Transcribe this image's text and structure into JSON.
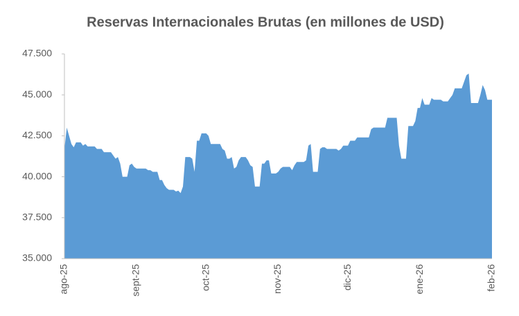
{
  "chart_data": {
    "type": "area",
    "title": "Reservas Internacionales Brutas (en millones de USD)",
    "categories": [
      "ago-25",
      null,
      null,
      null,
      null,
      null,
      null,
      null,
      null,
      null,
      null,
      null,
      null,
      null,
      null,
      null,
      null,
      null,
      null,
      null,
      null,
      null,
      null,
      null,
      null,
      null,
      null,
      null,
      null,
      null,
      null,
      "sept-25",
      null,
      null,
      null,
      null,
      null,
      null,
      null,
      null,
      null,
      null,
      null,
      null,
      null,
      null,
      null,
      null,
      null,
      null,
      null,
      null,
      null,
      null,
      null,
      null,
      null,
      null,
      null,
      null,
      null,
      "oct-25",
      null,
      null,
      null,
      null,
      null,
      null,
      null,
      null,
      null,
      null,
      null,
      null,
      null,
      null,
      null,
      null,
      null,
      null,
      null,
      null,
      null,
      null,
      null,
      null,
      null,
      null,
      null,
      null,
      null,
      null,
      "nov-25",
      null,
      null,
      null,
      null,
      null,
      null,
      null,
      null,
      null,
      null,
      null,
      null,
      null,
      null,
      null,
      null,
      null,
      null,
      null,
      null,
      null,
      null,
      null,
      null,
      null,
      null,
      null,
      null,
      null,
      "dic-25",
      null,
      null,
      null,
      null,
      null,
      null,
      null,
      null,
      null,
      null,
      null,
      null,
      null,
      null,
      null,
      null,
      null,
      null,
      null,
      null,
      null,
      null,
      null,
      null,
      null,
      null,
      null,
      null,
      null,
      null,
      "ene-26",
      null,
      null,
      null,
      null,
      null,
      null,
      null,
      null,
      null,
      null,
      null,
      null,
      null,
      null,
      null,
      null,
      null,
      null,
      null,
      null,
      null,
      null,
      null,
      null,
      null,
      null,
      null,
      null,
      null,
      null,
      "feb-26"
    ],
    "values": [
      41700,
      43000,
      42500,
      42000,
      41800,
      42100,
      42100,
      42100,
      41900,
      42000,
      41850,
      41850,
      41850,
      41850,
      41700,
      41700,
      41700,
      41500,
      41500,
      41500,
      41500,
      41300,
      41100,
      41200,
      40800,
      40000,
      40000,
      40000,
      40700,
      40800,
      40600,
      40500,
      40500,
      40500,
      40500,
      40500,
      40400,
      40400,
      40300,
      40300,
      40300,
      39800,
      39800,
      39500,
      39300,
      39200,
      39200,
      39200,
      39100,
      39150,
      39000,
      39400,
      41200,
      41200,
      41200,
      41100,
      40300,
      42200,
      42200,
      42650,
      42650,
      42650,
      42500,
      42000,
      42000,
      42000,
      42000,
      42000,
      41700,
      41600,
      41100,
      41100,
      41200,
      40500,
      40600,
      41000,
      41200,
      41200,
      41200,
      41000,
      40700,
      40600,
      39400,
      39400,
      39400,
      40800,
      40800,
      41000,
      41000,
      40200,
      40200,
      40200,
      40300,
      40500,
      40600,
      40600,
      40600,
      40600,
      40400,
      40700,
      40900,
      40900,
      40900,
      40900,
      41000,
      41900,
      42000,
      40300,
      40300,
      40300,
      41700,
      41800,
      41800,
      41700,
      41700,
      41700,
      41700,
      41700,
      41600,
      41700,
      41900,
      41900,
      41900,
      42200,
      42200,
      42200,
      42400,
      42400,
      42400,
      42400,
      42400,
      42400,
      42900,
      43000,
      43000,
      43000,
      43000,
      43000,
      43000,
      43600,
      43600,
      43600,
      43600,
      43600,
      41900,
      41100,
      41100,
      41100,
      43100,
      43100,
      43100,
      43400,
      44200,
      44200,
      44800,
      44400,
      44400,
      44400,
      44800,
      44700,
      44700,
      44700,
      44700,
      44600,
      44600,
      44600,
      44800,
      45000,
      45400,
      45400,
      45400,
      45400,
      45800,
      46200,
      46300,
      44500,
      44500,
      44500,
      44500,
      45000,
      45600,
      45300,
      44700,
      44700,
      44700
    ],
    "color": "#5b9bd5",
    "ylim": [
      35000,
      47500
    ],
    "yticks": [
      {
        "value": 35000,
        "label": "35.000"
      },
      {
        "value": 37500,
        "label": "37.500"
      },
      {
        "value": 40000,
        "label": "40.000"
      },
      {
        "value": 42500,
        "label": "42.500"
      },
      {
        "value": 45000,
        "label": "45.000"
      },
      {
        "value": 47500,
        "label": "47.500"
      }
    ]
  }
}
